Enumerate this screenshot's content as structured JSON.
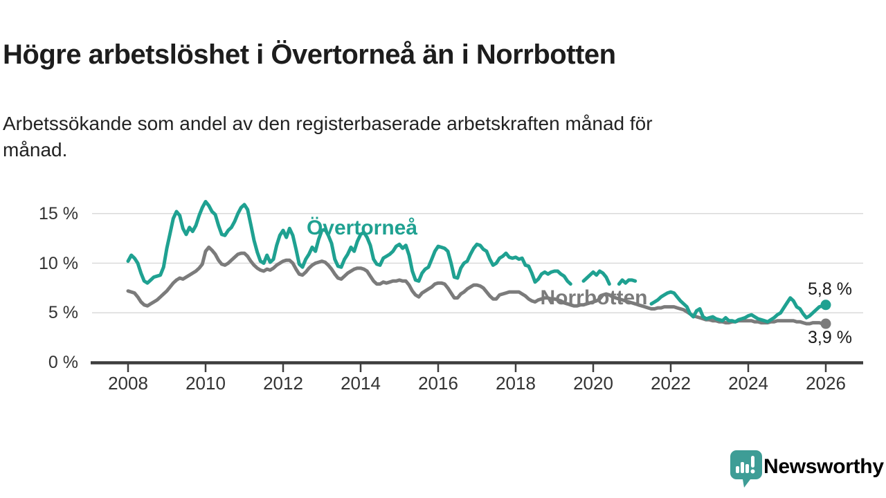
{
  "header": {
    "title": "Högre arbetslöshet i Övertorneå än i Norrbotten",
    "subtitle": "Arbetssökande som andel av den registerbaserade arbetskraften månad för\nmånad."
  },
  "colors": {
    "overtornea": "#1FA191",
    "norrbotten": "#7B7B7B",
    "gridline": "#D9D9D9",
    "axis": "#3D3D3D",
    "tick_text": "#333333",
    "title_text": "#1D1D1D",
    "logo_teal": "#3E9D96"
  },
  "chart_data": {
    "type": "line",
    "title": "Högre arbetslöshet i Övertorneå än i Norrbotten",
    "subtitle": "Arbetssökande som andel av den registerbaserade arbetskraften månad för månad.",
    "unit": "%",
    "frequency": "monthly",
    "x_start_year": 2008,
    "x_end_year": 2026,
    "grid": "horizontal-only",
    "ylim": [
      0,
      17.5
    ],
    "y_ticks": [
      {
        "value": 0,
        "label": "0 %"
      },
      {
        "value": 5,
        "label": "5 %"
      },
      {
        "value": 10,
        "label": "10 %"
      },
      {
        "value": 15,
        "label": "15 %"
      }
    ],
    "x_ticks": [
      {
        "value": 2008,
        "label": "2008"
      },
      {
        "value": 2010,
        "label": "2010"
      },
      {
        "value": 2012,
        "label": "2012"
      },
      {
        "value": 2014,
        "label": "2014"
      },
      {
        "value": 2016,
        "label": "2016"
      },
      {
        "value": 2018,
        "label": "2018"
      },
      {
        "value": 2020,
        "label": "2020"
      },
      {
        "value": 2022,
        "label": "2022"
      },
      {
        "value": 2024,
        "label": "2024"
      },
      {
        "value": 2026,
        "label": "2026"
      }
    ],
    "series": [
      {
        "name": "Övertorneå",
        "color": "#1FA191",
        "end_label": "5,8 %",
        "end_value": 5.8,
        "values": [
          10.2,
          10.8,
          10.5,
          10.0,
          9.0,
          8.2,
          8.0,
          8.3,
          8.6,
          8.7,
          8.8,
          9.6,
          11.5,
          13.0,
          14.5,
          15.2,
          14.8,
          13.5,
          12.9,
          13.6,
          13.2,
          13.8,
          14.8,
          15.6,
          16.2,
          15.8,
          15.2,
          14.9,
          13.8,
          12.9,
          12.8,
          13.3,
          13.6,
          14.2,
          15.0,
          15.6,
          15.9,
          15.4,
          13.9,
          12.3,
          11.1,
          10.2,
          10.0,
          10.8,
          10.1,
          10.4,
          11.8,
          12.8,
          13.3,
          12.6,
          13.5,
          12.8,
          11.4,
          9.9,
          9.6,
          10.4,
          10.9,
          11.6,
          11.2,
          12.4,
          13.3,
          13.4,
          12.8,
          12.0,
          10.4,
          9.7,
          9.6,
          10.4,
          10.9,
          11.6,
          11.2,
          12.2,
          12.9,
          13.1,
          12.6,
          11.8,
          10.4,
          9.9,
          9.8,
          10.5,
          10.7,
          10.9,
          11.2,
          11.7,
          11.9,
          11.5,
          11.8,
          10.8,
          9.2,
          8.3,
          8.2,
          9.0,
          9.4,
          9.6,
          10.4,
          11.2,
          11.7,
          11.6,
          11.5,
          11.2,
          10.0,
          8.6,
          8.5,
          9.5,
          10.0,
          10.2,
          10.9,
          11.5,
          11.9,
          11.8,
          11.4,
          11.2,
          10.4,
          9.8,
          10.0,
          10.5,
          10.7,
          11.0,
          10.6,
          10.5,
          10.6,
          10.4,
          10.5,
          9.8,
          9.7,
          9.0,
          8.1,
          8.4,
          8.9,
          9.1,
          8.9,
          9.1,
          9.2,
          9.2,
          8.9,
          8.7,
          8.2,
          7.9,
          null,
          null,
          null,
          8.2,
          8.5,
          8.8,
          9.1,
          8.8,
          9.2,
          9.0,
          8.6,
          7.9,
          null,
          null,
          7.9,
          8.3,
          8.0,
          8.3,
          8.3,
          8.2,
          null,
          null,
          null,
          null,
          5.9,
          6.1,
          6.3,
          6.6,
          6.8,
          7.0,
          7.1,
          7.0,
          6.6,
          6.2,
          5.9,
          5.6,
          4.9,
          4.6,
          5.2,
          5.4,
          4.6,
          4.4,
          4.5,
          4.6,
          4.4,
          4.3,
          4.2,
          4.5,
          4.2,
          4.2,
          4.1,
          4.3,
          4.4,
          4.5,
          4.7,
          4.8,
          4.6,
          4.4,
          4.3,
          4.2,
          4.1,
          4.3,
          4.5,
          4.8,
          5.0,
          5.5,
          6.0,
          6.5,
          6.2,
          5.6,
          5.4,
          4.9,
          4.5,
          4.7,
          5.0,
          5.3,
          5.6,
          5.7,
          5.8
        ]
      },
      {
        "name": "Norrbotten",
        "color": "#7B7B7B",
        "end_label": "3,9 %",
        "end_value": 3.9,
        "values": [
          7.2,
          7.1,
          7.0,
          6.6,
          6.1,
          5.8,
          5.7,
          5.9,
          6.1,
          6.3,
          6.6,
          6.9,
          7.2,
          7.6,
          8.0,
          8.3,
          8.5,
          8.4,
          8.6,
          8.8,
          9.0,
          9.2,
          9.5,
          9.9,
          11.2,
          11.6,
          11.3,
          10.9,
          10.3,
          9.9,
          9.8,
          10.0,
          10.3,
          10.6,
          10.9,
          11.0,
          11.0,
          10.7,
          10.2,
          9.8,
          9.5,
          9.3,
          9.2,
          9.4,
          9.3,
          9.5,
          9.8,
          10.0,
          10.2,
          10.3,
          10.3,
          10.0,
          9.4,
          8.9,
          8.8,
          9.1,
          9.5,
          9.8,
          10.0,
          10.1,
          10.2,
          10.1,
          9.8,
          9.4,
          8.9,
          8.5,
          8.4,
          8.7,
          9.0,
          9.2,
          9.4,
          9.5,
          9.5,
          9.4,
          9.2,
          8.7,
          8.2,
          7.9,
          7.9,
          8.1,
          8.0,
          8.1,
          8.2,
          8.2,
          8.3,
          8.2,
          8.2,
          7.8,
          7.2,
          6.8,
          6.6,
          7.0,
          7.2,
          7.4,
          7.6,
          7.9,
          8.0,
          8.0,
          7.9,
          7.5,
          7.0,
          6.5,
          6.5,
          6.9,
          7.1,
          7.4,
          7.6,
          7.8,
          7.8,
          7.7,
          7.5,
          7.1,
          6.7,
          6.4,
          6.4,
          6.8,
          6.9,
          7.0,
          7.1,
          7.1,
          7.1,
          7.1,
          6.9,
          6.7,
          6.4,
          6.2,
          6.1,
          6.3,
          6.4,
          6.5,
          6.5,
          6.4,
          6.4,
          6.3,
          6.2,
          6.0,
          5.9,
          5.8,
          5.7,
          5.7,
          5.8,
          5.8,
          5.9,
          6.0,
          6.1,
          6.2,
          6.4,
          6.8,
          6.9,
          6.8,
          6.6,
          6.5,
          6.4,
          6.3,
          6.2,
          6.1,
          6.0,
          5.9,
          5.8,
          5.7,
          5.6,
          5.5,
          5.4,
          5.4,
          5.5,
          5.5,
          5.6,
          5.6,
          5.6,
          5.6,
          5.5,
          5.4,
          5.3,
          5.1,
          4.9,
          4.7,
          4.6,
          4.5,
          4.4,
          4.3,
          4.3,
          4.2,
          4.2,
          4.1,
          4.1,
          4.0,
          4.0,
          4.1,
          4.1,
          4.2,
          4.2,
          4.2,
          4.2,
          4.2,
          4.1,
          4.1,
          4.0,
          4.0,
          4.0,
          4.1,
          4.1,
          4.2,
          4.2,
          4.2,
          4.2,
          4.2,
          4.2,
          4.1,
          4.1,
          4.0,
          3.9,
          3.9,
          4.0,
          4.0,
          4.0,
          3.9,
          3.9
        ]
      }
    ],
    "legend_position": "inline-labels"
  },
  "footer": {
    "brand": "Newsworthy"
  }
}
